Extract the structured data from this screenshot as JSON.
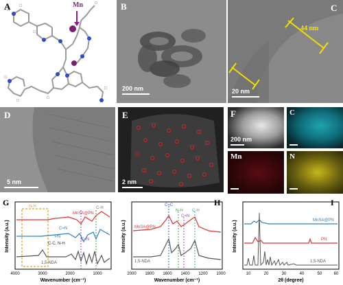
{
  "panelA": {
    "letter": "A",
    "label": "Mn",
    "colors": {
      "metal": "#7a1f78",
      "carbon": "#9a9a9a",
      "nitrogen": "#2a4bd0",
      "hydrogen": "#ffffff",
      "arrow": "#8c1a8c"
    }
  },
  "panelB": {
    "letter": "B",
    "scale": "200 nm"
  },
  "panelC": {
    "letter": "C",
    "annotation": "44 nm",
    "scale": "20 nm",
    "line_color": "#f0e000"
  },
  "panelD": {
    "letter": "D",
    "scale": "5 nm"
  },
  "panelE": {
    "letter": "E",
    "scale": "2 nm",
    "marker_color": "#e02020"
  },
  "panelF": {
    "letter": "F",
    "scale": "200 nm",
    "maps": [
      {
        "label": "C",
        "color": "#1fa5b0"
      },
      {
        "label": "Mn",
        "color": "#b01820"
      },
      {
        "label": "N",
        "color": "#c8b818"
      }
    ]
  },
  "panelG": {
    "letter": "G",
    "ylabel": "Intensity (a.u.)",
    "xlabel": "Wavenumber (cm⁻¹)",
    "ticks": [
      "4000",
      "3000",
      "2000",
      "1000"
    ],
    "annotations": [
      "N-H",
      "C-H",
      "C=N",
      "C=N",
      "C-C, N-H"
    ],
    "series": [
      {
        "name": "MnSA@PN",
        "color": "#e03030"
      },
      {
        "name": "PN",
        "color": "#2a7fc0"
      },
      {
        "name": "1,5-NDA",
        "color": "#555555"
      }
    ]
  },
  "panelH": {
    "letter": "H",
    "ylabel": "Intensity (a.u.)",
    "xlabel": "Wavenumber (cm⁻¹)",
    "ticks": [
      "2000",
      "1800",
      "1600",
      "1400",
      "1200",
      "1000"
    ],
    "annotations": [
      "C=C",
      "N-H",
      "C=N",
      "C-H"
    ],
    "series": [
      {
        "name": "MnSA@PN",
        "color": "#e03030"
      },
      {
        "name": "1,5-NDA",
        "color": "#555555"
      }
    ]
  },
  "panelI": {
    "letter": "I",
    "ylabel": "Intensity (a.u.)",
    "xlabel": "2θ (degree)",
    "ticks": [
      "10",
      "20",
      "30",
      "40",
      "50",
      "60"
    ],
    "series": [
      {
        "name": "MnSA@PN",
        "color": "#2a7fc0"
      },
      {
        "name": "PN",
        "color": "#e03030"
      },
      {
        "name": "1,5-NDA",
        "color": "#555555"
      }
    ]
  }
}
